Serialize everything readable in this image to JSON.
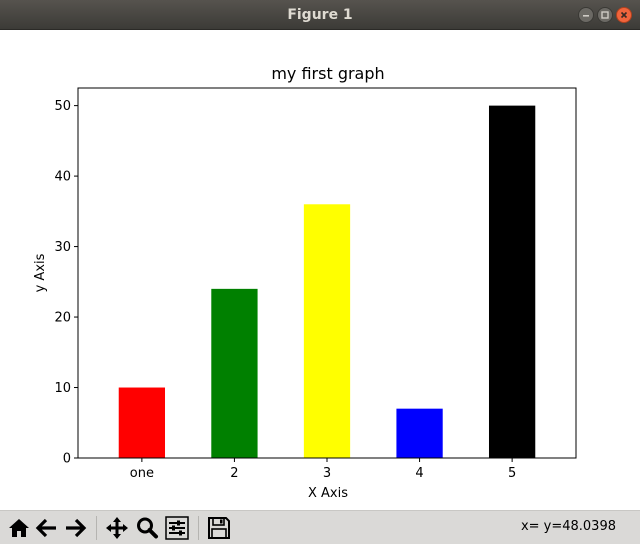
{
  "window": {
    "title": "Figure 1",
    "controls": {
      "minimize_icon": "minimize-icon",
      "maximize_icon": "maximize-icon",
      "close_icon": "close-icon"
    }
  },
  "chart_data": {
    "type": "bar",
    "title": "my first graph",
    "xlabel": "X Axis",
    "ylabel": "y Axis",
    "categories": [
      "one",
      "2",
      "3",
      "4",
      "5"
    ],
    "values": [
      10,
      24,
      36,
      7,
      50
    ],
    "colors": [
      "#ff0000",
      "#008000",
      "#ffff00",
      "#0000ff",
      "#000000"
    ],
    "ylim": [
      0,
      52.5
    ],
    "yticks": [
      0,
      10,
      20,
      30,
      40,
      50
    ],
    "grid": false,
    "legend": null
  },
  "toolbar": {
    "buttons": [
      {
        "name": "home-button",
        "icon": "home-icon"
      },
      {
        "name": "back-button",
        "icon": "arrow-left-icon"
      },
      {
        "name": "forward-button",
        "icon": "arrow-right-icon"
      },
      {
        "name": "pan-button",
        "icon": "move-icon"
      },
      {
        "name": "zoom-button",
        "icon": "magnifier-icon"
      },
      {
        "name": "configure-subplots-button",
        "icon": "sliders-icon"
      },
      {
        "name": "save-button",
        "icon": "floppy-disk-icon"
      }
    ],
    "coordinates": "x= y=48.0398"
  }
}
